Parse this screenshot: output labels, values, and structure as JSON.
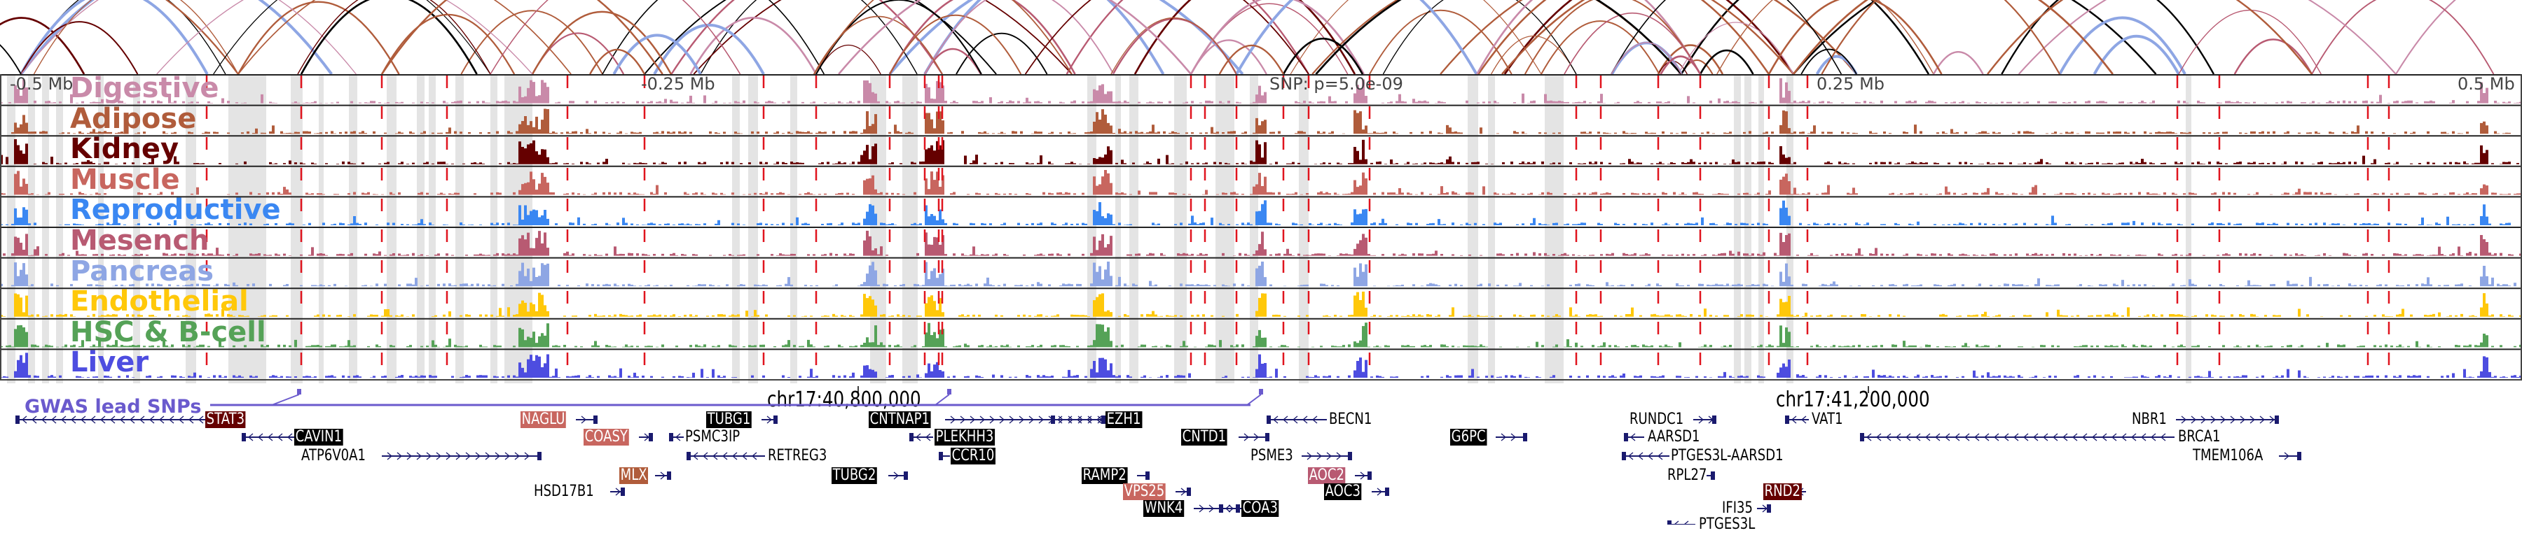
{
  "colors": {
    "digestive": "#c98aa9",
    "adipose": "#b05c3b",
    "kidney": "#650000",
    "muscle": "#c8665f",
    "reproductive": "#3a87f2",
    "mesench": "#b85a72",
    "pancreas": "#8ea6e4",
    "endothelial": "#ffc80a",
    "hsc": "#55a257",
    "liver": "#4d4de0",
    "snp_line": "#e0141e",
    "highlight": "#e4e4e4",
    "gene": "#1a1a6e",
    "gwas": "#6a5acd"
  },
  "axis": {
    "labels": [
      "-0.5 Mb",
      "-0.25 Mb",
      "SNP: p=5.0e-09",
      "0.25 Mb",
      "0.5 Mb"
    ],
    "coords": [
      "chr17:40,800,000",
      "chr17:41,200,000"
    ]
  },
  "tracks": [
    {
      "name": "Digestive",
      "color": "#c98aa9"
    },
    {
      "name": "Adipose",
      "color": "#b05c3b"
    },
    {
      "name": "Kidney",
      "color": "#650000"
    },
    {
      "name": "Muscle",
      "color": "#c8665f"
    },
    {
      "name": "Reproductive",
      "color": "#3a87f2"
    },
    {
      "name": "Mesench",
      "color": "#b85a72"
    },
    {
      "name": "Pancreas",
      "color": "#8ea6e4"
    },
    {
      "name": "Endothelial",
      "color": "#ffc80a"
    },
    {
      "name": "HSC & B-cell",
      "color": "#55a257"
    },
    {
      "name": "Liver",
      "color": "#4d4de0"
    }
  ],
  "gwas": {
    "label": "GWAS lead SNPs"
  },
  "genes": [
    {
      "name": "STAT3",
      "style": "badge",
      "bg": "#650000",
      "strand": "-"
    },
    {
      "name": "NAGLU",
      "style": "badge",
      "bg": "#c8665f",
      "strand": "+"
    },
    {
      "name": "TUBG1",
      "style": "badge",
      "bg": "#000000",
      "strand": "+"
    },
    {
      "name": "CNTNAP1",
      "style": "badge",
      "bg": "#000000",
      "strand": "+"
    },
    {
      "name": "EZH1",
      "style": "badge",
      "bg": "#000000",
      "strand": "-"
    },
    {
      "name": "BECN1",
      "style": "plain",
      "strand": "-"
    },
    {
      "name": "RUNDC1",
      "style": "plain",
      "strand": "+"
    },
    {
      "name": "VAT1",
      "style": "plain",
      "strand": "-"
    },
    {
      "name": "NBR1",
      "style": "plain",
      "strand": "+"
    },
    {
      "name": "CAVIN1",
      "style": "badge",
      "bg": "#000000",
      "strand": "-"
    },
    {
      "name": "COASY",
      "style": "badge",
      "bg": "#c8665f",
      "strand": "+"
    },
    {
      "name": "PSMC3IP",
      "style": "plain",
      "strand": "-"
    },
    {
      "name": "PLEKHH3",
      "style": "badge",
      "bg": "#000000",
      "strand": "-"
    },
    {
      "name": "CNTD1",
      "style": "badge",
      "bg": "#000000",
      "strand": "+"
    },
    {
      "name": "G6PC",
      "style": "badge",
      "bg": "#000000",
      "strand": "+"
    },
    {
      "name": "AARSD1",
      "style": "plain",
      "strand": "-"
    },
    {
      "name": "BRCA1",
      "style": "plain",
      "strand": "-"
    },
    {
      "name": "ATP6V0A1",
      "style": "plain",
      "strand": "+"
    },
    {
      "name": "RETREG3",
      "style": "plain",
      "strand": "-"
    },
    {
      "name": "CCR10",
      "style": "badge",
      "bg": "#000000",
      "strand": "-"
    },
    {
      "name": "PSME3",
      "style": "plain",
      "strand": "+"
    },
    {
      "name": "PTGES3L-AARSD1",
      "style": "plain",
      "strand": "-"
    },
    {
      "name": "TMEM106A",
      "style": "plain",
      "strand": "+"
    },
    {
      "name": "MLX",
      "style": "badge",
      "bg": "#b05c3b",
      "strand": "+"
    },
    {
      "name": "TUBG2",
      "style": "badge",
      "bg": "#000000",
      "strand": "+"
    },
    {
      "name": "RAMP2",
      "style": "badge",
      "bg": "#000000",
      "strand": "+"
    },
    {
      "name": "AOC2",
      "style": "badge",
      "bg": "#b85a72",
      "strand": "+"
    },
    {
      "name": "RPL27",
      "style": "plain",
      "strand": "+"
    },
    {
      "name": "HSD17B1",
      "style": "plain",
      "strand": "+"
    },
    {
      "name": "VPS25",
      "style": "badge",
      "bg": "#c8665f",
      "strand": "+"
    },
    {
      "name": "AOC3",
      "style": "badge",
      "bg": "#000000",
      "strand": "+"
    },
    {
      "name": "RND2",
      "style": "badge",
      "bg": "#650000",
      "strand": "-"
    },
    {
      "name": "WNK4",
      "style": "badge",
      "bg": "#000000",
      "strand": "+"
    },
    {
      "name": "COA3",
      "style": "badge",
      "bg": "#000000",
      "strand": "-"
    },
    {
      "name": "IFI35",
      "style": "plain",
      "strand": "+"
    },
    {
      "name": "PTGES3L",
      "style": "plain",
      "strand": "-"
    }
  ]
}
